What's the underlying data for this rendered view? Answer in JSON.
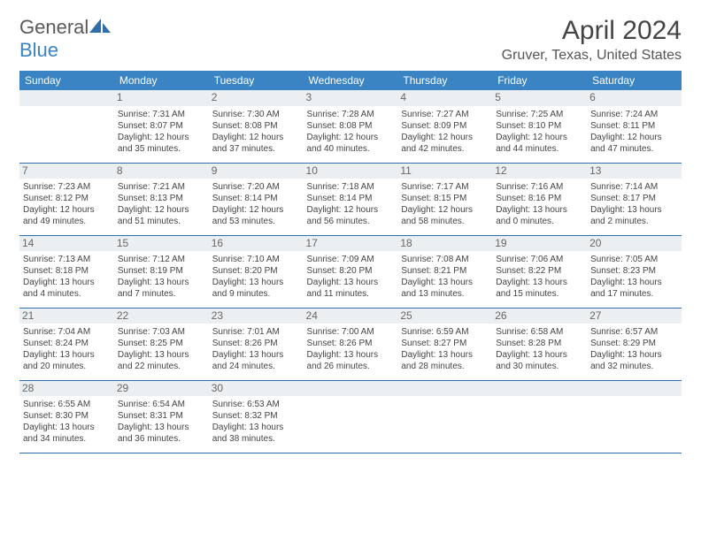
{
  "logo": {
    "text1": "General",
    "text2": "Blue"
  },
  "title": "April 2024",
  "location": "Gruver, Texas, United States",
  "headers": [
    "Sunday",
    "Monday",
    "Tuesday",
    "Wednesday",
    "Thursday",
    "Friday",
    "Saturday"
  ],
  "header_bg": "#3b84c4",
  "header_fg": "#ffffff",
  "row_border": "#2f6ea8",
  "daynum_bg": "#eceff1",
  "weeks": [
    [
      {
        "empty": true
      },
      {
        "n": "1",
        "sr": "Sunrise: 7:31 AM",
        "ss": "Sunset: 8:07 PM",
        "d1": "Daylight: 12 hours",
        "d2": "and 35 minutes."
      },
      {
        "n": "2",
        "sr": "Sunrise: 7:30 AM",
        "ss": "Sunset: 8:08 PM",
        "d1": "Daylight: 12 hours",
        "d2": "and 37 minutes."
      },
      {
        "n": "3",
        "sr": "Sunrise: 7:28 AM",
        "ss": "Sunset: 8:08 PM",
        "d1": "Daylight: 12 hours",
        "d2": "and 40 minutes."
      },
      {
        "n": "4",
        "sr": "Sunrise: 7:27 AM",
        "ss": "Sunset: 8:09 PM",
        "d1": "Daylight: 12 hours",
        "d2": "and 42 minutes."
      },
      {
        "n": "5",
        "sr": "Sunrise: 7:25 AM",
        "ss": "Sunset: 8:10 PM",
        "d1": "Daylight: 12 hours",
        "d2": "and 44 minutes."
      },
      {
        "n": "6",
        "sr": "Sunrise: 7:24 AM",
        "ss": "Sunset: 8:11 PM",
        "d1": "Daylight: 12 hours",
        "d2": "and 47 minutes."
      }
    ],
    [
      {
        "n": "7",
        "sr": "Sunrise: 7:23 AM",
        "ss": "Sunset: 8:12 PM",
        "d1": "Daylight: 12 hours",
        "d2": "and 49 minutes."
      },
      {
        "n": "8",
        "sr": "Sunrise: 7:21 AM",
        "ss": "Sunset: 8:13 PM",
        "d1": "Daylight: 12 hours",
        "d2": "and 51 minutes."
      },
      {
        "n": "9",
        "sr": "Sunrise: 7:20 AM",
        "ss": "Sunset: 8:14 PM",
        "d1": "Daylight: 12 hours",
        "d2": "and 53 minutes."
      },
      {
        "n": "10",
        "sr": "Sunrise: 7:18 AM",
        "ss": "Sunset: 8:14 PM",
        "d1": "Daylight: 12 hours",
        "d2": "and 56 minutes."
      },
      {
        "n": "11",
        "sr": "Sunrise: 7:17 AM",
        "ss": "Sunset: 8:15 PM",
        "d1": "Daylight: 12 hours",
        "d2": "and 58 minutes."
      },
      {
        "n": "12",
        "sr": "Sunrise: 7:16 AM",
        "ss": "Sunset: 8:16 PM",
        "d1": "Daylight: 13 hours",
        "d2": "and 0 minutes."
      },
      {
        "n": "13",
        "sr": "Sunrise: 7:14 AM",
        "ss": "Sunset: 8:17 PM",
        "d1": "Daylight: 13 hours",
        "d2": "and 2 minutes."
      }
    ],
    [
      {
        "n": "14",
        "sr": "Sunrise: 7:13 AM",
        "ss": "Sunset: 8:18 PM",
        "d1": "Daylight: 13 hours",
        "d2": "and 4 minutes."
      },
      {
        "n": "15",
        "sr": "Sunrise: 7:12 AM",
        "ss": "Sunset: 8:19 PM",
        "d1": "Daylight: 13 hours",
        "d2": "and 7 minutes."
      },
      {
        "n": "16",
        "sr": "Sunrise: 7:10 AM",
        "ss": "Sunset: 8:20 PM",
        "d1": "Daylight: 13 hours",
        "d2": "and 9 minutes."
      },
      {
        "n": "17",
        "sr": "Sunrise: 7:09 AM",
        "ss": "Sunset: 8:20 PM",
        "d1": "Daylight: 13 hours",
        "d2": "and 11 minutes."
      },
      {
        "n": "18",
        "sr": "Sunrise: 7:08 AM",
        "ss": "Sunset: 8:21 PM",
        "d1": "Daylight: 13 hours",
        "d2": "and 13 minutes."
      },
      {
        "n": "19",
        "sr": "Sunrise: 7:06 AM",
        "ss": "Sunset: 8:22 PM",
        "d1": "Daylight: 13 hours",
        "d2": "and 15 minutes."
      },
      {
        "n": "20",
        "sr": "Sunrise: 7:05 AM",
        "ss": "Sunset: 8:23 PM",
        "d1": "Daylight: 13 hours",
        "d2": "and 17 minutes."
      }
    ],
    [
      {
        "n": "21",
        "sr": "Sunrise: 7:04 AM",
        "ss": "Sunset: 8:24 PM",
        "d1": "Daylight: 13 hours",
        "d2": "and 20 minutes."
      },
      {
        "n": "22",
        "sr": "Sunrise: 7:03 AM",
        "ss": "Sunset: 8:25 PM",
        "d1": "Daylight: 13 hours",
        "d2": "and 22 minutes."
      },
      {
        "n": "23",
        "sr": "Sunrise: 7:01 AM",
        "ss": "Sunset: 8:26 PM",
        "d1": "Daylight: 13 hours",
        "d2": "and 24 minutes."
      },
      {
        "n": "24",
        "sr": "Sunrise: 7:00 AM",
        "ss": "Sunset: 8:26 PM",
        "d1": "Daylight: 13 hours",
        "d2": "and 26 minutes."
      },
      {
        "n": "25",
        "sr": "Sunrise: 6:59 AM",
        "ss": "Sunset: 8:27 PM",
        "d1": "Daylight: 13 hours",
        "d2": "and 28 minutes."
      },
      {
        "n": "26",
        "sr": "Sunrise: 6:58 AM",
        "ss": "Sunset: 8:28 PM",
        "d1": "Daylight: 13 hours",
        "d2": "and 30 minutes."
      },
      {
        "n": "27",
        "sr": "Sunrise: 6:57 AM",
        "ss": "Sunset: 8:29 PM",
        "d1": "Daylight: 13 hours",
        "d2": "and 32 minutes."
      }
    ],
    [
      {
        "n": "28",
        "sr": "Sunrise: 6:55 AM",
        "ss": "Sunset: 8:30 PM",
        "d1": "Daylight: 13 hours",
        "d2": "and 34 minutes."
      },
      {
        "n": "29",
        "sr": "Sunrise: 6:54 AM",
        "ss": "Sunset: 8:31 PM",
        "d1": "Daylight: 13 hours",
        "d2": "and 36 minutes."
      },
      {
        "n": "30",
        "sr": "Sunrise: 6:53 AM",
        "ss": "Sunset: 8:32 PM",
        "d1": "Daylight: 13 hours",
        "d2": "and 38 minutes."
      },
      {
        "empty": true
      },
      {
        "empty": true
      },
      {
        "empty": true
      },
      {
        "empty": true
      }
    ]
  ]
}
